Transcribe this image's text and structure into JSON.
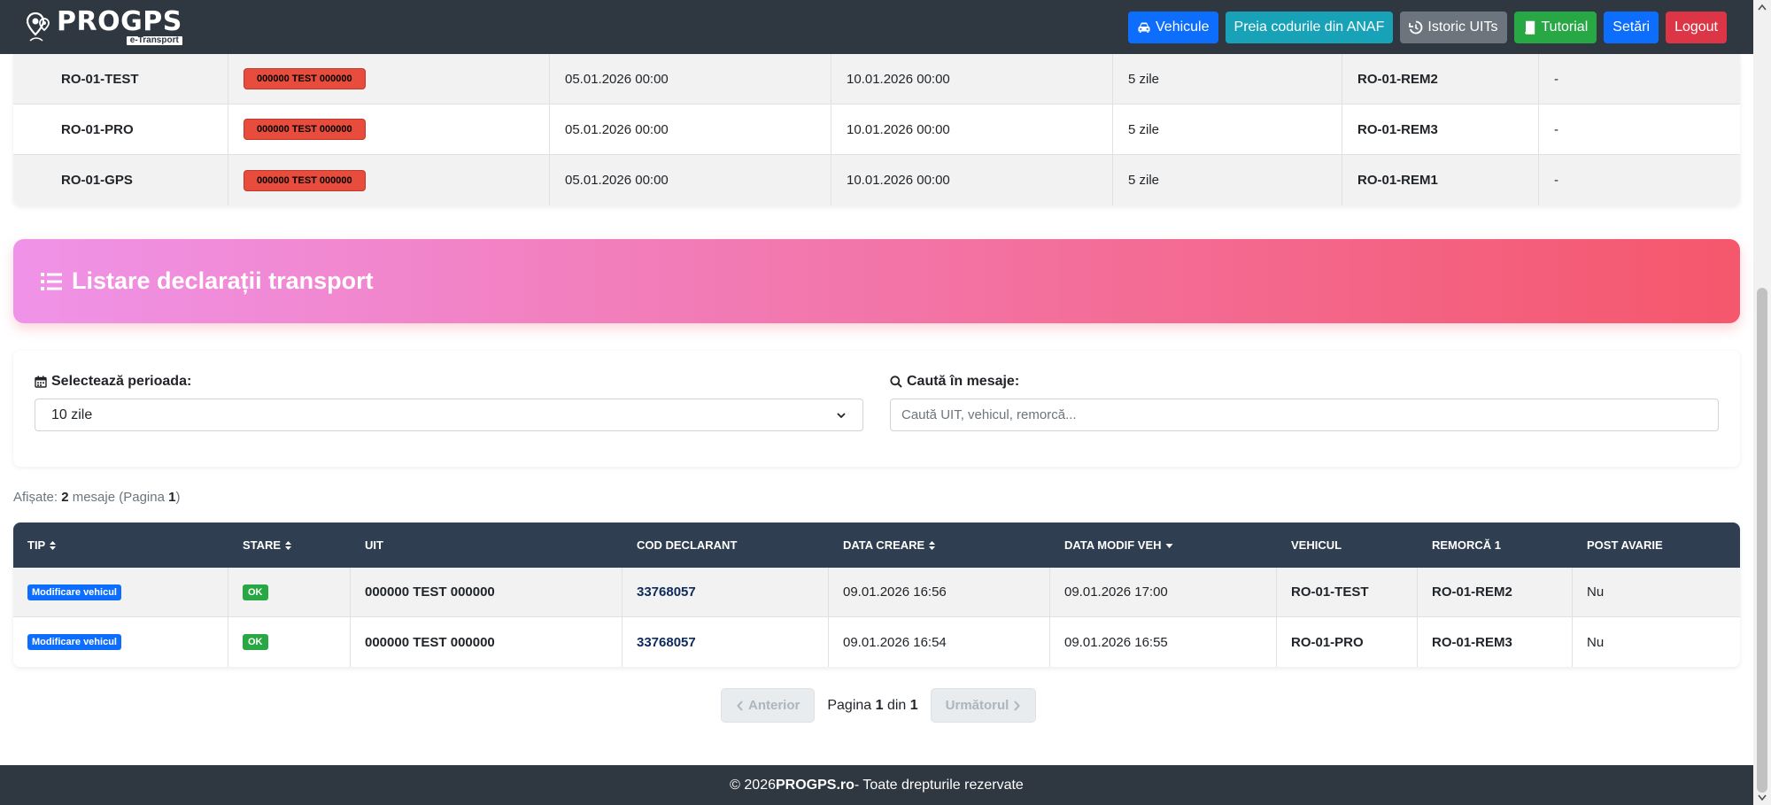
{
  "brand": {
    "name": "PROGPS",
    "sub": "e-Transport"
  },
  "nav": {
    "vehicule": "Vehicule",
    "preia": "Preia codurile din ANAF",
    "istoric": "Istoric UITs",
    "tutorial": "Tutorial",
    "setari": "Setări",
    "logout": "Logout"
  },
  "top_rows": [
    {
      "vehicle": "RO-01-TEST",
      "uit": "000000 TEST 000000",
      "start": "05.01.2026 00:00",
      "end": "10.01.2026 00:00",
      "days": "5 zile",
      "trailer": "RO-01-REM2",
      "extra": "-"
    },
    {
      "vehicle": "RO-01-PRO",
      "uit": "000000 TEST 000000",
      "start": "05.01.2026 00:00",
      "end": "10.01.2026 00:00",
      "days": "5 zile",
      "trailer": "RO-01-REM3",
      "extra": "-"
    },
    {
      "vehicle": "RO-01-GPS",
      "uit": "000000 TEST 000000",
      "start": "05.01.2026 00:00",
      "end": "10.01.2026 00:00",
      "days": "5 zile",
      "trailer": "RO-01-REM1",
      "extra": "-"
    }
  ],
  "section": {
    "title": "Listare declarații transport"
  },
  "filters": {
    "period_label": "Selectează perioada:",
    "period_value": "10 zile",
    "search_label": "Caută în mesaje:",
    "search_placeholder": "Caută UIT, vehicul, remorcă..."
  },
  "count": {
    "prefix": "Afișate: ",
    "num": "2",
    "mid": " mesaje (Pagina ",
    "page": "1",
    "suffix": ")"
  },
  "table": {
    "headers": [
      "TIP",
      "STARE",
      "UIT",
      "COD DECLARANT",
      "DATA CREARE",
      "DATA MODIF VEH",
      "VEHICUL",
      "REMORCĂ 1",
      "POST AVARIE"
    ],
    "rows": [
      {
        "tip": "Modificare vehicul",
        "stare": "OK",
        "uit": "000000 TEST 000000",
        "cod": "33768057",
        "creare": "09.01.2026 16:56",
        "modif": "09.01.2026 17:00",
        "vehicul": "RO-01-TEST",
        "remorca": "RO-01-REM2",
        "avarie": "Nu"
      },
      {
        "tip": "Modificare vehicul",
        "stare": "OK",
        "uit": "000000 TEST 000000",
        "cod": "33768057",
        "creare": "09.01.2026 16:54",
        "modif": "09.01.2026 16:55",
        "vehicul": "RO-01-PRO",
        "remorca": "RO-01-REM3",
        "avarie": "Nu"
      }
    ]
  },
  "pager": {
    "prev": "Anterior",
    "next": "Următorul",
    "page_word": "Pagina ",
    "page": "1",
    "of": " din ",
    "total": "1"
  },
  "footer": {
    "prefix": "© 2026 ",
    "brand": "PROGPS.ro",
    "suffix": " - Toate drepturile rezervate"
  },
  "colors": {
    "navbar": "#2f3740",
    "primary": "#0d6efd",
    "teal": "#17a2b8",
    "success": "#28a745",
    "danger": "#dc3545",
    "gradient_start": "#f093e8",
    "gradient_end": "#f5576c"
  }
}
